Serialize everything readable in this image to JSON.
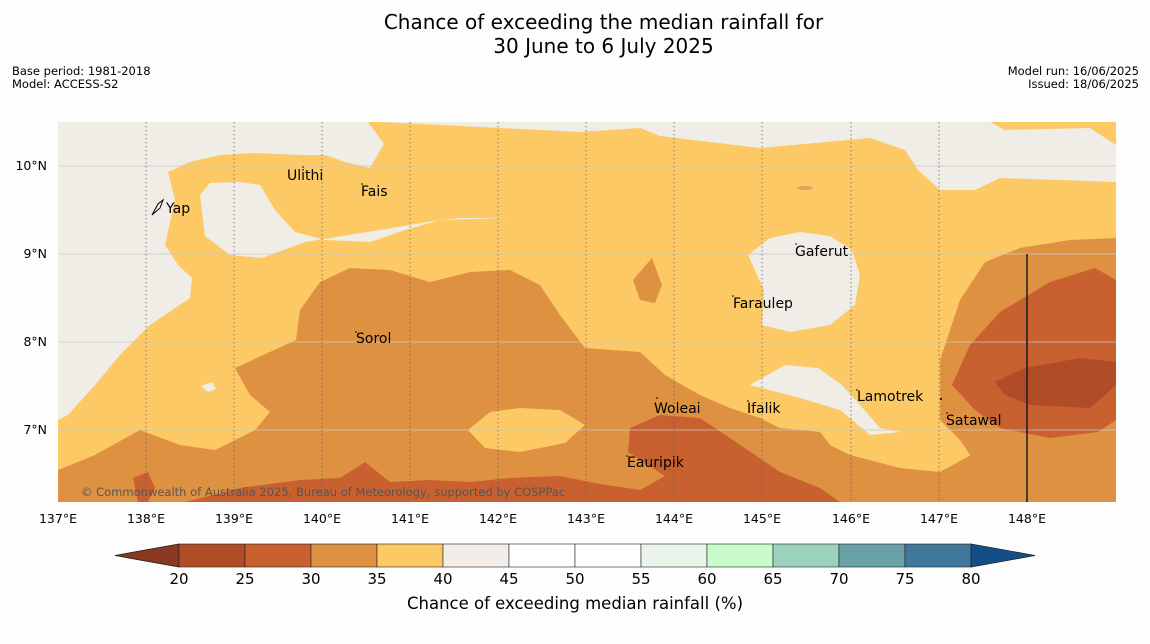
{
  "title": {
    "line1": "Chance of exceeding the median rainfall for",
    "line2": "30 June to 6 July 2025"
  },
  "meta": {
    "base_period": "Base period: 1981-2018",
    "model": "Model: ACCESS-S2",
    "model_run": "Model run: 16/06/2025",
    "issued": "Issued: 18/06/2025"
  },
  "map": {
    "longitude_labels": [
      "137°E",
      "138°E",
      "139°E",
      "140°E",
      "141°E",
      "142°E",
      "143°E",
      "144°E",
      "145°E",
      "146°E",
      "147°E",
      "148°E"
    ],
    "latitude_labels": [
      "10°N",
      "9°N",
      "8°N",
      "7°N"
    ],
    "places": [
      "Yap",
      "Ulithi",
      "Fais",
      "Sorol",
      "Gaferut",
      "Faraulep",
      "Woleai",
      "Ifalik",
      "Lamotrek",
      "Satawal",
      "Eauripik"
    ],
    "copyright": "© Commonwealth of Australia 2025, Bureau of Meteorology, supported by COSPPac"
  },
  "colorbar": {
    "label": "Chance of exceeding median rainfall (%)",
    "ticks": [
      "20",
      "25",
      "30",
      "35",
      "40",
      "45",
      "50",
      "55",
      "60",
      "65",
      "70",
      "75",
      "80"
    ],
    "colors": [
      "#b04c27",
      "#c8612f",
      "#df9142",
      "#fdc964",
      "#f2ede8",
      "#ffffff",
      "#ffffff",
      "#eaf4ea",
      "#c8fccd",
      "#9cd1bb",
      "#6aa1a6",
      "#41779a"
    ],
    "low_extend_color": "#8a3820",
    "high_extend_color": "#134f86"
  },
  "colors": {
    "land": "#f0ece6",
    "grid": "#c8c8c8"
  }
}
